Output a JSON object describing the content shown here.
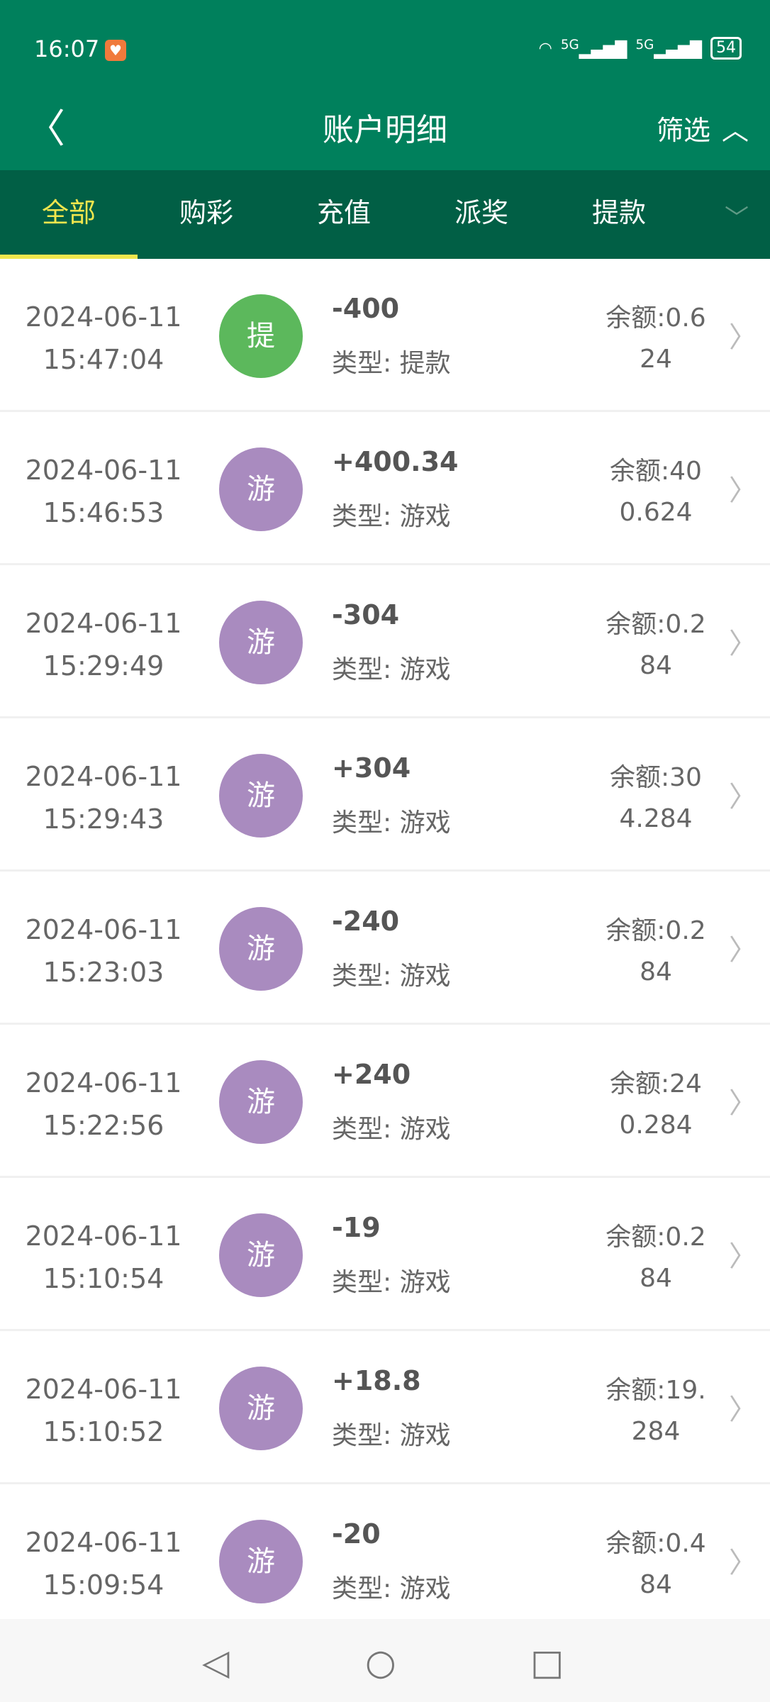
{
  "status": {
    "time": "16:07",
    "battery": "54",
    "network": "5G"
  },
  "header": {
    "title": "账户明细",
    "filter_label": "筛选"
  },
  "tabs": [
    "全部",
    "购彩",
    "充值",
    "派奖",
    "提款"
  ],
  "colors": {
    "primary": "#00805c",
    "tab_bg": "#015f45",
    "active": "#f2e64d",
    "withdraw": "#5cb85c",
    "game": "#a98bbf"
  },
  "records": [
    {
      "date": "2024-06-11",
      "time": "15:47:04",
      "badge": "提",
      "kind": "withdraw",
      "amount": "-400",
      "type": "类型: 提款",
      "balance": "余额:0.624"
    },
    {
      "date": "2024-06-11",
      "time": "15:46:53",
      "badge": "游",
      "kind": "game",
      "amount": "+400.34",
      "type": "类型: 游戏",
      "balance": "余额:400.624"
    },
    {
      "date": "2024-06-11",
      "time": "15:29:49",
      "badge": "游",
      "kind": "game",
      "amount": "-304",
      "type": "类型: 游戏",
      "balance": "余额:0.284"
    },
    {
      "date": "2024-06-11",
      "time": "15:29:43",
      "badge": "游",
      "kind": "game",
      "amount": "+304",
      "type": "类型: 游戏",
      "balance": "余额:304.284"
    },
    {
      "date": "2024-06-11",
      "time": "15:23:03",
      "badge": "游",
      "kind": "game",
      "amount": "-240",
      "type": "类型: 游戏",
      "balance": "余额:0.284"
    },
    {
      "date": "2024-06-11",
      "time": "15:22:56",
      "badge": "游",
      "kind": "game",
      "amount": "+240",
      "type": "类型: 游戏",
      "balance": "余额:240.284"
    },
    {
      "date": "2024-06-11",
      "time": "15:10:54",
      "badge": "游",
      "kind": "game",
      "amount": "-19",
      "type": "类型: 游戏",
      "balance": "余额:0.284"
    },
    {
      "date": "2024-06-11",
      "time": "15:10:52",
      "badge": "游",
      "kind": "game",
      "amount": "+18.8",
      "type": "类型: 游戏",
      "balance": "余额:19.284"
    },
    {
      "date": "2024-06-11",
      "time": "15:09:54",
      "badge": "游",
      "kind": "game",
      "amount": "-20",
      "type": "类型: 游戏",
      "balance": "余额:0.484"
    }
  ]
}
